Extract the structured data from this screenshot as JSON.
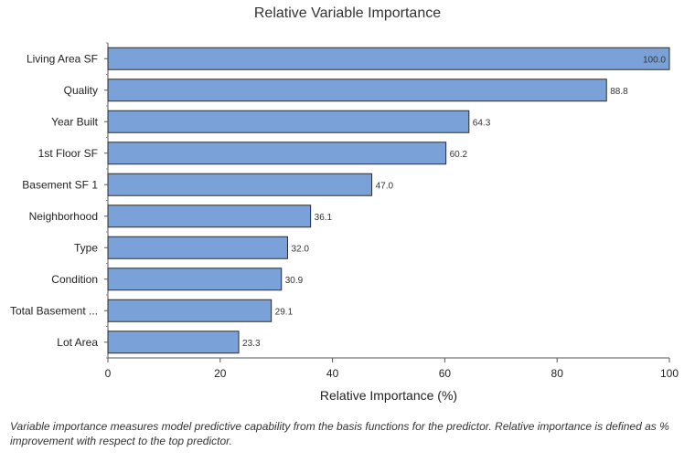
{
  "chart_data": {
    "type": "bar",
    "orientation": "horizontal",
    "title": "Relative Variable Importance",
    "xlabel": "Relative Importance (%)",
    "ylabel": "",
    "categories": [
      "Living Area SF",
      "Quality",
      "Year Built",
      "1st Floor SF",
      "Basement SF 1",
      "Neighborhood",
      "Type",
      "Condition",
      "Total Basement ...",
      "Lot Area"
    ],
    "values": [
      100.0,
      88.8,
      64.3,
      60.2,
      47.0,
      36.1,
      32.0,
      30.9,
      29.1,
      23.3
    ],
    "value_labels": [
      "100.0",
      "88.8",
      "64.3",
      "60.2",
      "47.0",
      "36.1",
      "32.0",
      "30.9",
      "29.1",
      "23.3"
    ],
    "xlim": [
      0,
      100
    ],
    "xticks": [
      0,
      20,
      40,
      60,
      80,
      100
    ],
    "bar_color": "#7aa2d8",
    "bar_edge_color": "#2b2b2b",
    "grid": false
  },
  "caption": "Variable importance measures model predictive capability from the basis functions for the predictor. Relative importance is defined as % improvement with respect to the top predictor."
}
